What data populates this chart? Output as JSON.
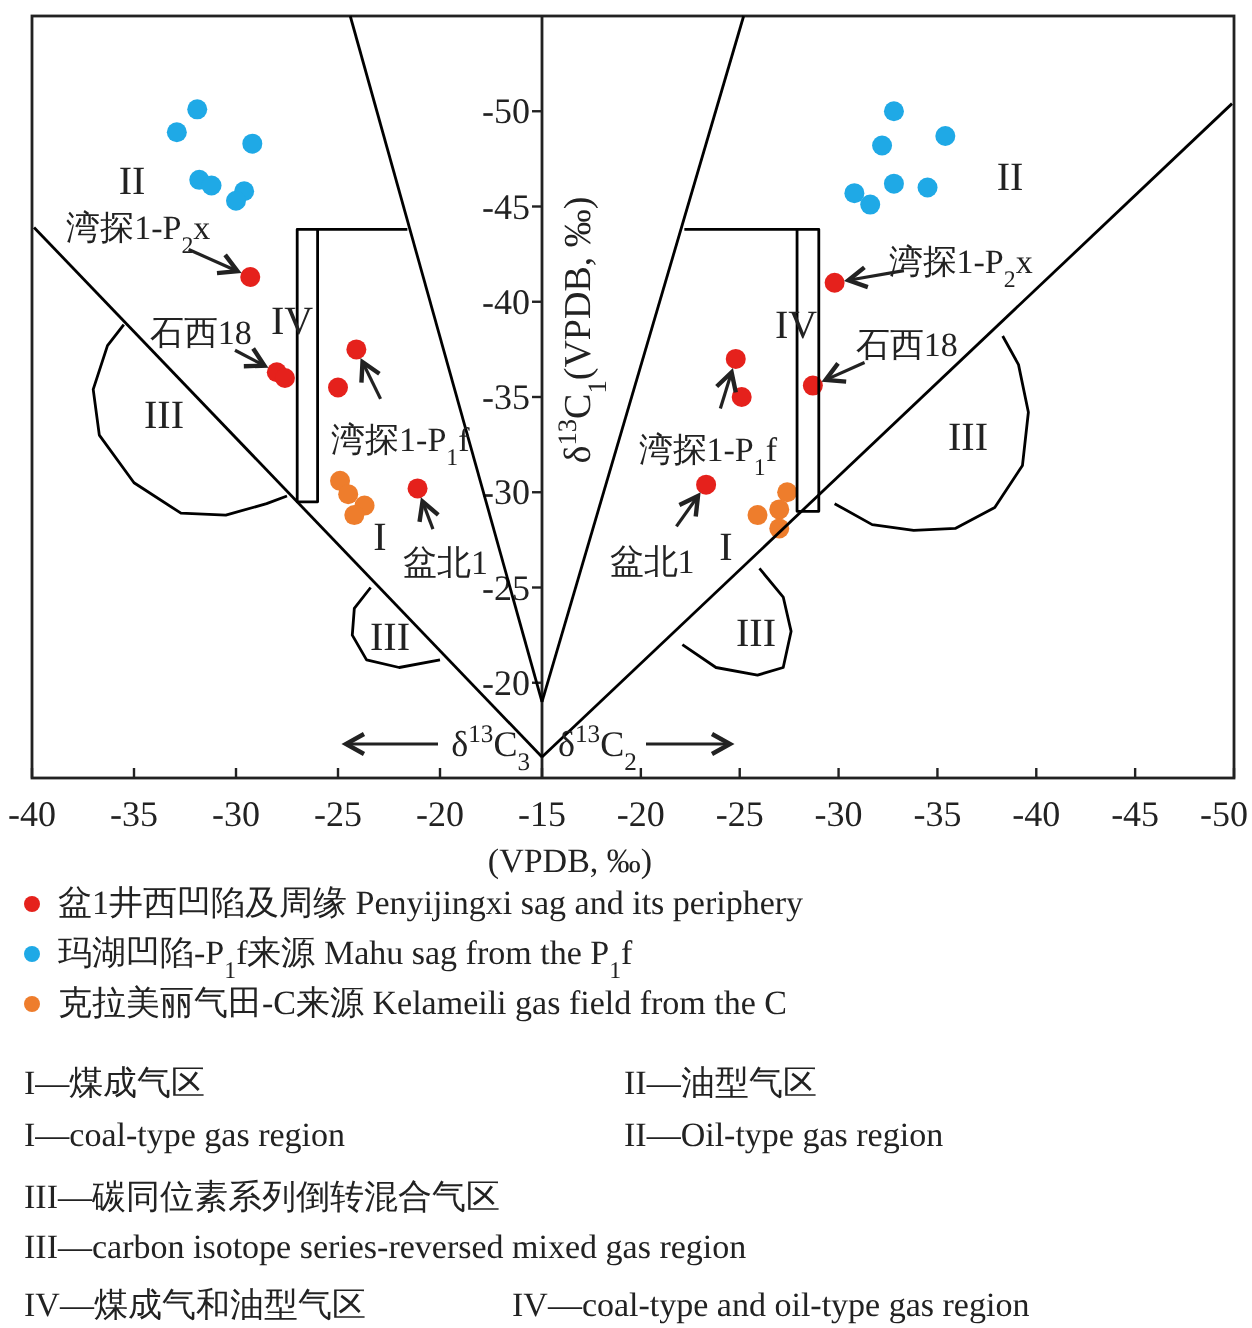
{
  "chart_data": [
    {
      "type": "scatter",
      "xlabel": "δ$^{13}$C$_{3}$",
      "ylabel": "δ$^{13}$C$_{1}$(VPDB, ‰)",
      "xlim": [
        -40,
        -15
      ],
      "ylim": [
        -15,
        -55
      ],
      "xticks": [
        -40,
        -35,
        -30,
        -25,
        -20,
        -15
      ],
      "yticks": [
        -20,
        -25,
        -30,
        -35,
        -40,
        -45,
        -50
      ],
      "grid": false,
      "marker": "circle",
      "legend": "bottom",
      "series": [
        {
          "name": "盆1井西凹陷及周缘 Penyijingxi sag and its periphery",
          "color": "#e5211c",
          "x": [
            -29.3,
            -28.0,
            -27.6,
            -24.1,
            -25.0,
            -21.1
          ],
          "values": [
            -41.3,
            -36.3,
            -36.0,
            -37.5,
            -35.5,
            -30.2
          ]
        },
        {
          "name": "玛湖凹陷-P$_{1}$f来源 Mahu sag from the P$_{1}$f",
          "color": "#1fa9e6",
          "x": [
            -31.9,
            -32.9,
            -29.2,
            -31.8,
            -31.2,
            -29.6,
            -30.0
          ],
          "values": [
            -50.1,
            -48.9,
            -48.3,
            -46.4,
            -46.1,
            -45.8,
            -45.3
          ]
        },
        {
          "name": "克拉美丽气田-C来源 Kelameili gas field from the C",
          "color": "#ee7d2c",
          "x": [
            -24.9,
            -24.5,
            -23.7,
            -24.2
          ],
          "values": [
            -30.6,
            -29.9,
            -29.3,
            -28.8
          ]
        },
        {
          "type": "line",
          "marker": "none",
          "color": "#000000",
          "x": [
            -39.9,
            -15
          ],
          "values": [
            -43.9,
            -16.1
          ]
        },
        {
          "type": "line",
          "marker": "none",
          "color": "#000000",
          "x": [
            -24.4,
            -15
          ],
          "values": [
            -55,
            -19
          ]
        },
        {
          "type": "line",
          "marker": "none",
          "color": "#000000",
          "x": [
            -21.6,
            -27.0,
            -27.0,
            -26.0,
            -26.0
          ],
          "values": [
            -43.8,
            -43.8,
            -29.5,
            -29.5,
            -43.8
          ]
        },
        {
          "type": "line",
          "marker": "none",
          "color": "#000000",
          "x": [
            -35.5,
            -36.3,
            -37.0,
            -36.7,
            -35.0,
            -32.7,
            -30.5,
            -28.5,
            -27.5
          ],
          "values": [
            -38.8,
            -37.7,
            -35.4,
            -33.0,
            -30.5,
            -28.9,
            -28.8,
            -29.4,
            -29.8
          ]
        },
        {
          "type": "line",
          "marker": "none",
          "color": "#000000",
          "x": [
            -23.4,
            -24.2,
            -24.3,
            -23.6,
            -22.0,
            -20.0
          ],
          "values": [
            -25.0,
            -23.9,
            -22.5,
            -21.2,
            -20.8,
            -21.2
          ]
        }
      ],
      "annotations": [
        "II",
        "IV",
        "III",
        "I",
        "III",
        {
          "text": "湾探1-P$_{2}$x",
          "x": -29.3,
          "y": -41.3
        },
        {
          "text": "石西18",
          "x": -28.0,
          "y": -36.3
        },
        {
          "text": "湾探1-P$_{1}$f",
          "x": -24.1,
          "y": -37.5
        },
        {
          "text": "盆北1",
          "x": -21.1,
          "y": -30.2
        }
      ]
    },
    {
      "type": "scatter",
      "xlabel": "δ$^{13}$C$_{2}$",
      "xlim": [
        -15,
        -50
      ],
      "ylim": [
        -15,
        -55
      ],
      "xticks": [
        -20,
        -25,
        -30,
        -35,
        -40,
        -45,
        -50
      ],
      "tick_labels": "x",
      "grid": false,
      "marker": "circle",
      "series": [
        {
          "color": "#e5211c",
          "x": [
            -29.8,
            -28.7,
            -24.8,
            -25.1,
            -23.3
          ],
          "values": [
            -41.0,
            -35.6,
            -37.0,
            -35.0,
            -30.4
          ]
        },
        {
          "color": "#1fa9e6",
          "x": [
            -32.8,
            -32.2,
            -35.4,
            -32.8,
            -34.5,
            -30.8,
            -31.6
          ],
          "values": [
            -50.0,
            -48.2,
            -48.7,
            -46.2,
            -46.0,
            -45.7,
            -45.1
          ]
        },
        {
          "color": "#ee7d2c",
          "x": [
            -27.4,
            -27.0,
            -25.9,
            -27.0
          ],
          "values": [
            -30.0,
            -29.1,
            -28.8,
            -28.1
          ]
        },
        {
          "type": "line",
          "marker": "none",
          "color": "#000000",
          "x": [
            -15,
            -49.9
          ],
          "values": [
            -16.1,
            -50.4
          ]
        },
        {
          "type": "line",
          "marker": "none",
          "color": "#000000",
          "x": [
            -15,
            -25.2
          ],
          "values": [
            -19,
            -55
          ]
        },
        {
          "type": "line",
          "marker": "none",
          "color": "#000000",
          "x": [
            -22.2,
            -29.0,
            -29.0,
            -27.9,
            -27.9
          ],
          "values": [
            -43.8,
            -43.8,
            -29.0,
            -29.0,
            -43.8
          ]
        },
        {
          "type": "line",
          "marker": "none",
          "color": "#000000",
          "x": [
            -38.3,
            -39.1,
            -39.6,
            -39.3,
            -37.9,
            -35.9,
            -33.8,
            -31.7,
            -29.8
          ],
          "values": [
            -38.2,
            -36.7,
            -34.2,
            -31.4,
            -29.2,
            -28.1,
            -28.0,
            -28.3,
            -29.4
          ]
        },
        {
          "type": "line",
          "marker": "none",
          "color": "#000000",
          "x": [
            -26.0,
            -27.2,
            -27.6,
            -27.2,
            -25.9,
            -23.8,
            -22.1
          ],
          "values": [
            -26.0,
            -24.5,
            -22.7,
            -20.8,
            -20.4,
            -20.8,
            -22.0
          ]
        }
      ],
      "annotations": [
        "II",
        "IV",
        "III",
        "I",
        "III",
        {
          "text": "湾探1-P$_{2}$x",
          "x": -29.8,
          "y": -41.0
        },
        {
          "text": "石西18",
          "x": -28.7,
          "y": -35.6
        },
        {
          "text": "湾探1-P$_{1}$f",
          "x": -24.8,
          "y": -37.0
        },
        {
          "text": "盆北1",
          "x": -23.3,
          "y": -30.4
        }
      ]
    },
    {
      "type": "other",
      "annotations": [
        "(VPDB, ‰)",
        "I—煤成气区",
        "II—油型气区",
        "I—coal-type gas region",
        "II—Oil-type gas region",
        "III—碳同位素系列倒转混合气区",
        "III—carbon isotope series-reversed mixed gas region",
        "IV—煤成气和油型气区",
        "IV—coal-type and oil-type gas region"
      ]
    }
  ]
}
